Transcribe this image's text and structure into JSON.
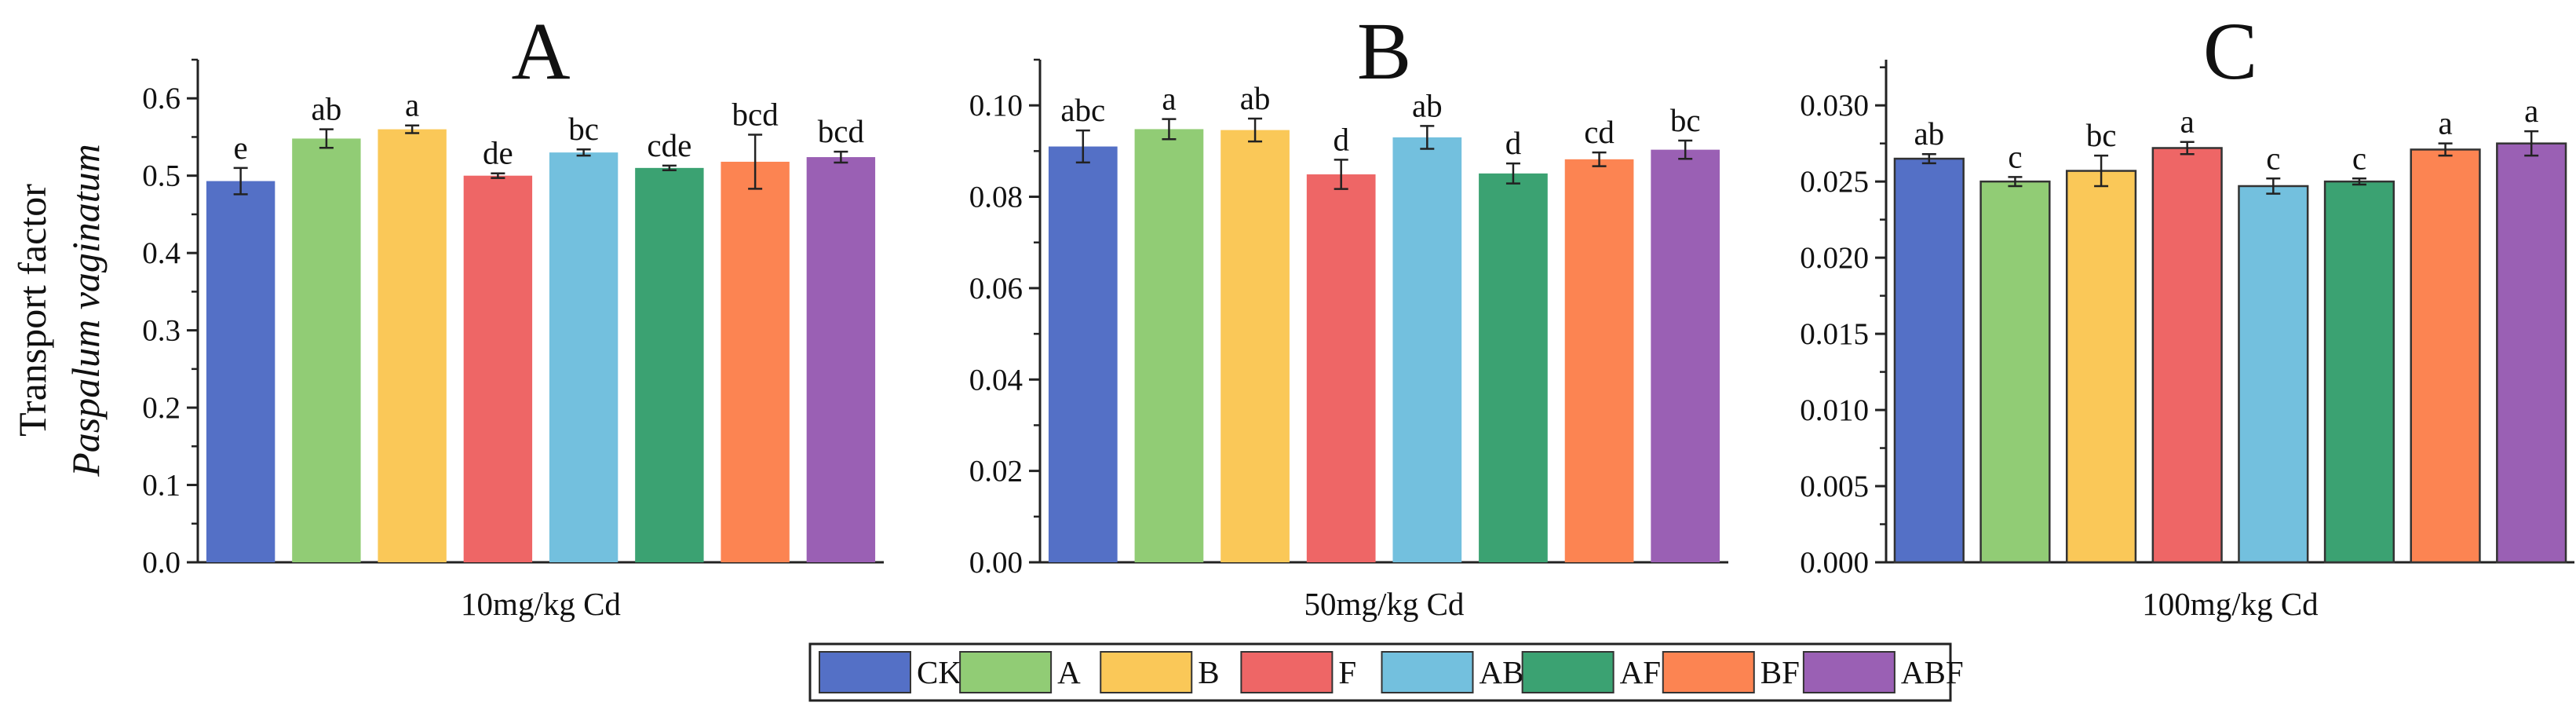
{
  "y_axis": {
    "line1": "Transport factor",
    "line2": "Paspalum vaginatum"
  },
  "legend": [
    {
      "label": "CK",
      "color": "#5470C6"
    },
    {
      "label": "A",
      "color": "#91CC75"
    },
    {
      "label": "B",
      "color": "#FAC858"
    },
    {
      "label": "F",
      "color": "#EE6666"
    },
    {
      "label": "AB",
      "color": "#73C0DE"
    },
    {
      "label": "AF",
      "color": "#3BA272"
    },
    {
      "label": "BF",
      "color": "#FC8452"
    },
    {
      "label": "ABF",
      "color": "#9A60B4"
    }
  ],
  "chart_data": [
    {
      "type": "bar",
      "title": "A",
      "xlabel": "10mg/kg Cd",
      "ylabel": "Transport factor Paspalum vaginatum",
      "categories": [
        "CK",
        "A",
        "B",
        "F",
        "AB",
        "AF",
        "BF",
        "ABF"
      ],
      "values": [
        0.493,
        0.548,
        0.56,
        0.5,
        0.53,
        0.51,
        0.518,
        0.524
      ],
      "errors": [
        0.017,
        0.012,
        0.005,
        0.003,
        0.004,
        0.003,
        0.035,
        0.007
      ],
      "significance": [
        "e",
        "ab",
        "a",
        "de",
        "bc",
        "cde",
        "bcd",
        "bcd"
      ],
      "ylim": [
        0,
        0.65
      ],
      "yticks": [
        0.0,
        0.1,
        0.2,
        0.3,
        0.4,
        0.5,
        0.6
      ],
      "ytick_labels": [
        "0.0",
        "0.1",
        "0.2",
        "0.3",
        "0.4",
        "0.5",
        "0.6"
      ],
      "bar_outline": false
    },
    {
      "type": "bar",
      "title": "B",
      "xlabel": "50mg/kg Cd",
      "ylabel": "Transport factor Paspalum vaginatum",
      "categories": [
        "CK",
        "A",
        "B",
        "F",
        "AB",
        "AF",
        "BF",
        "ABF"
      ],
      "values": [
        0.091,
        0.0948,
        0.0946,
        0.0849,
        0.093,
        0.0851,
        0.0882,
        0.0903
      ],
      "errors": [
        0.0035,
        0.0022,
        0.0025,
        0.0032,
        0.0025,
        0.0022,
        0.0015,
        0.002
      ],
      "significance": [
        "abc",
        "a",
        "ab",
        "d",
        "ab",
        "d",
        "cd",
        "bc"
      ],
      "ylim": [
        0,
        0.11
      ],
      "yticks": [
        0.0,
        0.02,
        0.04,
        0.06,
        0.08,
        0.1
      ],
      "ytick_labels": [
        "0.00",
        "0.02",
        "0.04",
        "0.06",
        "0.08",
        "0.10"
      ],
      "bar_outline": false
    },
    {
      "type": "bar",
      "title": "C",
      "xlabel": "100mg/kg Cd",
      "ylabel": "Transport factor Paspalum vaginatum",
      "categories": [
        "CK",
        "A",
        "B",
        "F",
        "AB",
        "AF",
        "BF",
        "ABF"
      ],
      "values": [
        0.0265,
        0.025,
        0.0257,
        0.0272,
        0.0247,
        0.025,
        0.0271,
        0.0275
      ],
      "errors": [
        0.0003,
        0.0003,
        0.001,
        0.0004,
        0.0005,
        0.0002,
        0.0004,
        0.0008
      ],
      "significance": [
        "ab",
        "c",
        "bc",
        "a",
        "c",
        "c",
        "a",
        "a"
      ],
      "ylim": [
        0,
        0.033
      ],
      "yticks": [
        0.0,
        0.005,
        0.01,
        0.015,
        0.02,
        0.025,
        0.03
      ],
      "ytick_labels": [
        "0.000",
        "0.005",
        "0.010",
        "0.015",
        "0.020",
        "0.025",
        "0.030"
      ],
      "bar_outline": true
    }
  ]
}
